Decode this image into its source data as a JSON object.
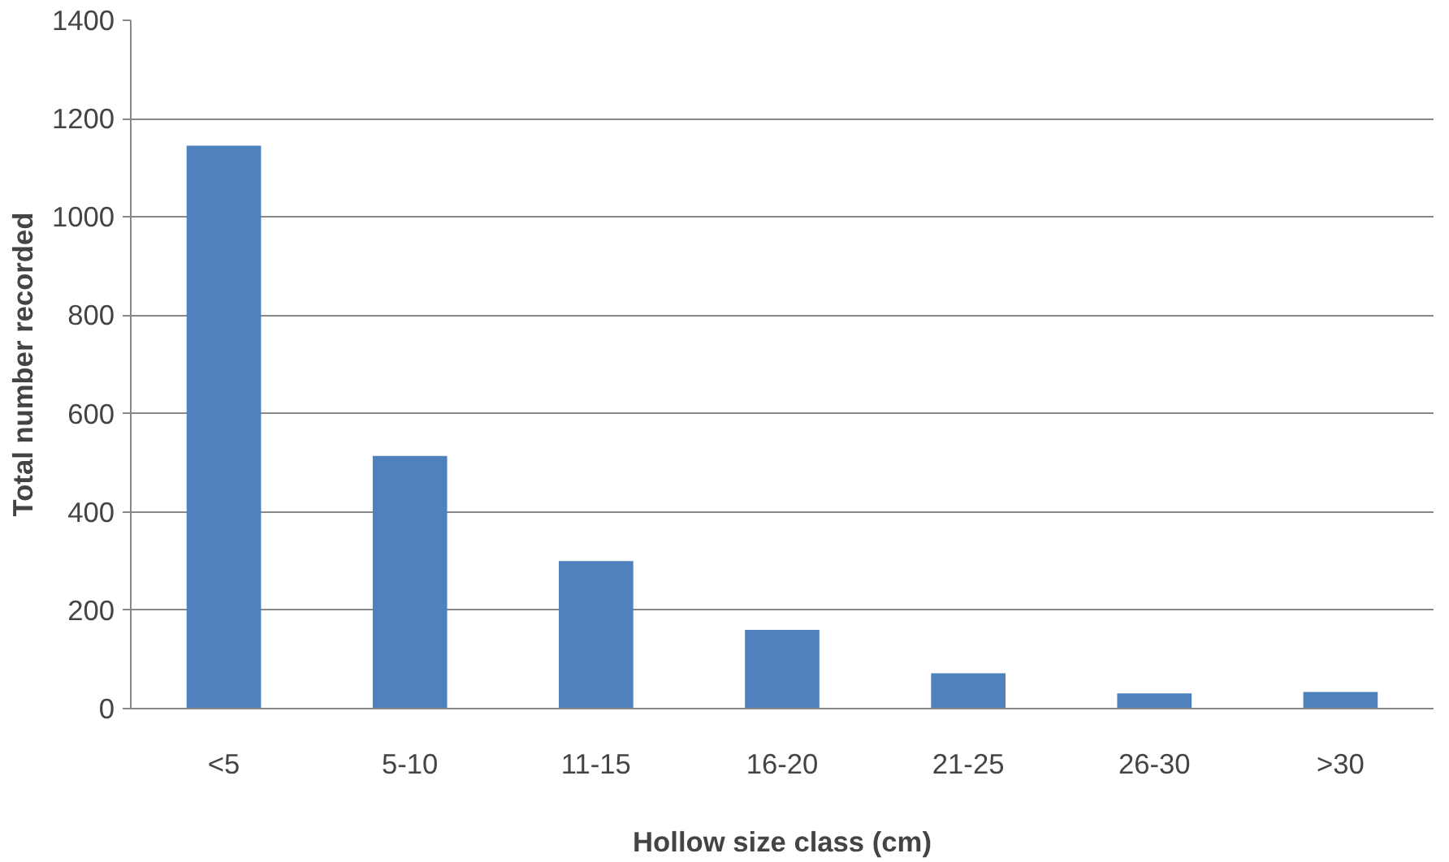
{
  "chart_data": {
    "type": "bar",
    "xlabel": "Hollow size class (cm)",
    "ylabel": "Total number recorded",
    "categories": [
      "<5",
      "5-10",
      "11-15",
      "16-20",
      "21-25",
      "26-30",
      ">30"
    ],
    "values": [
      1145,
      514,
      300,
      160,
      72,
      31,
      34
    ],
    "color": "#4f81bd",
    "ylim": [
      0,
      1400
    ],
    "yticks": [
      0,
      200,
      400,
      600,
      800,
      1000,
      1200,
      1400
    ],
    "grid": "y"
  }
}
